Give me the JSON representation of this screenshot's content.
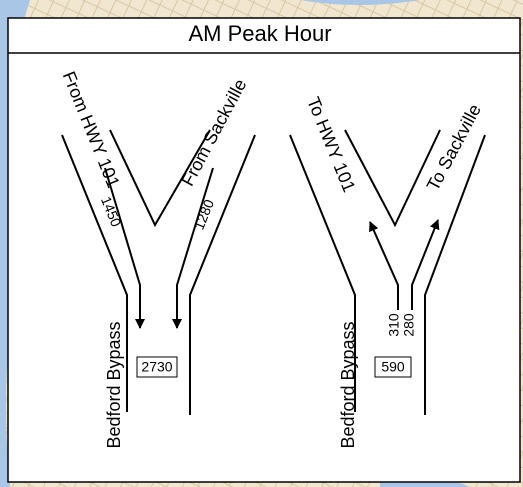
{
  "title": "AM Peak Hour",
  "left": {
    "leg_a": "From HWY 101",
    "volume_a": 1450,
    "leg_b": "From Sackville",
    "volume_b": 1280,
    "road": "Bedford Bypass",
    "total": 2730
  },
  "right": {
    "leg_a": "To HWY 101",
    "volume_a": 310,
    "leg_b": "To Sackville",
    "volume_b": 280,
    "road": "Bedford Bypass",
    "total": 590
  }
}
